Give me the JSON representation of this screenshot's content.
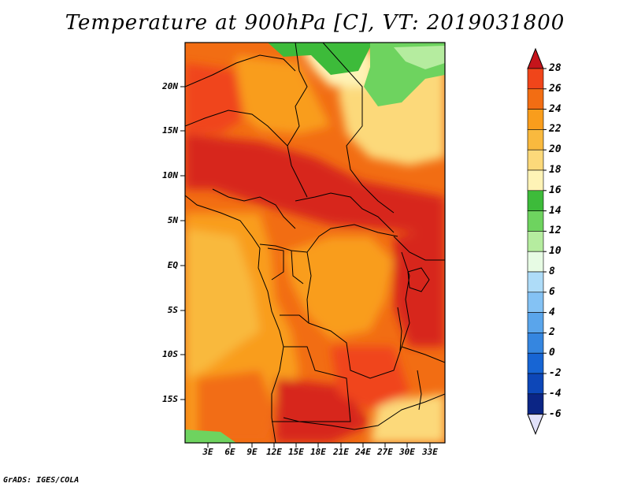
{
  "title": "Temperature at 900hPa [C], VT: 2019031800",
  "footer": "GrADS: IGES/COLA",
  "lat_labels": [
    "20N",
    "15N",
    "10N",
    "5N",
    "EQ",
    "5S",
    "10S",
    "15S"
  ],
  "lon_labels": [
    "3E",
    "6E",
    "9E",
    "12E",
    "15E",
    "18E",
    "21E",
    "24E",
    "27E",
    "30E",
    "33E"
  ],
  "colorbar": {
    "levels": [
      "28",
      "26",
      "24",
      "22",
      "20",
      "18",
      "16",
      "14",
      "12",
      "10",
      "8",
      "6",
      "4",
      "2",
      "0",
      "-2",
      "-4",
      "-6"
    ],
    "colors": [
      "#d7261e",
      "#f0451a",
      "#f26d13",
      "#f99d1c",
      "#f9b93e",
      "#fcd97a",
      "#fef3b6",
      "#3dbb3a",
      "#6ed35f",
      "#b5ec9f",
      "#e7fbe4",
      "#aedcf8",
      "#84c2f4",
      "#5aa5eb",
      "#3586e0",
      "#1765d4",
      "#0d47b8",
      "#0b2585",
      "#0a0e54"
    ],
    "under_color": "#e1e1fa",
    "over_color": "#c5141b"
  },
  "map_colors": {
    "hot": "#d7261e",
    "warm": "#f0451a",
    "mid": "#f26d13",
    "orange": "#f99d1c",
    "light_orange": "#f9b93e",
    "yellow": "#fcd97a",
    "pale": "#fef3b6",
    "green": "#3dbb3a",
    "light_green": "#6ed35f",
    "pale_green": "#b5ec9f"
  }
}
